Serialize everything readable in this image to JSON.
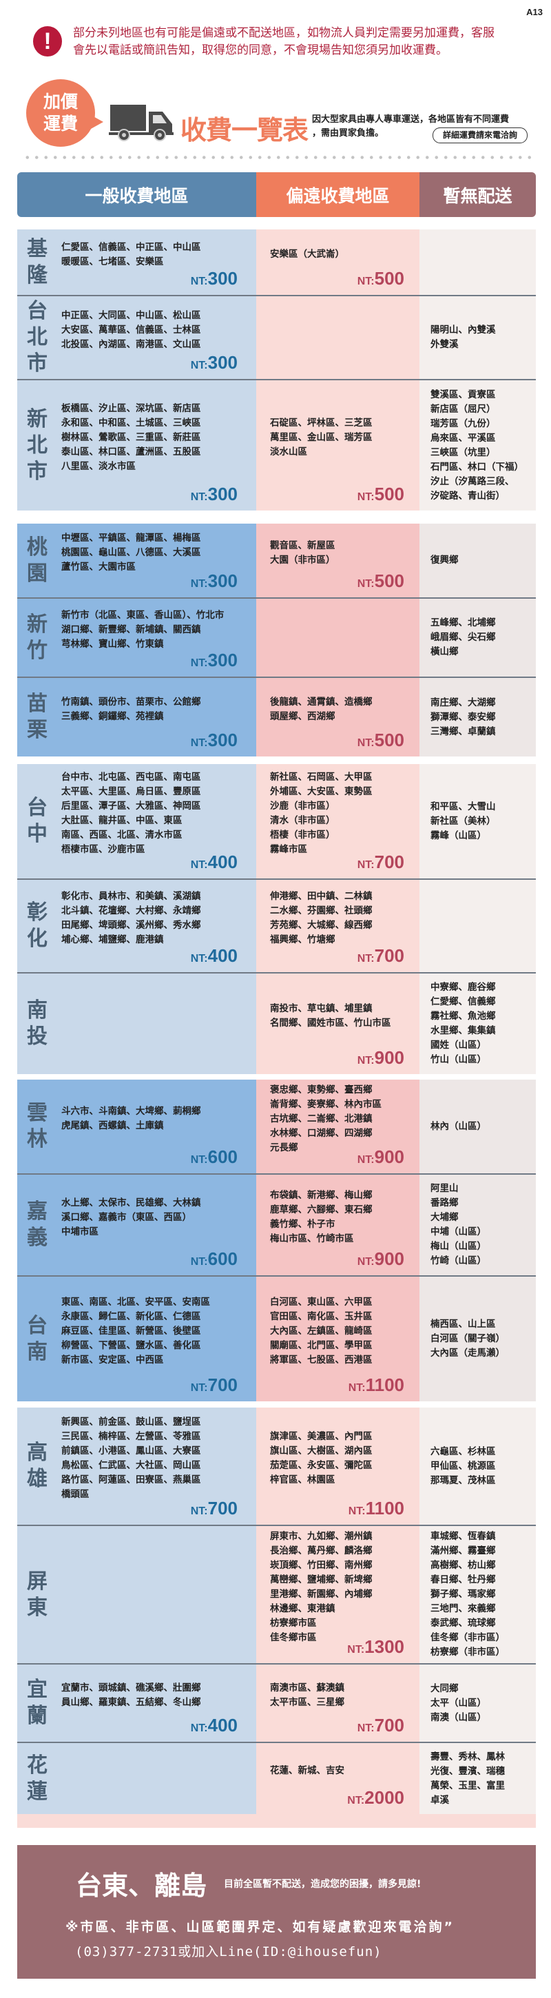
{
  "page_code": "A13",
  "warning": {
    "icon": "exclamation-icon",
    "lines": [
      "部分未列地區也有可能是偏遠或不配送地區，如物流人員判定需要另加運費，客服",
      "會先以電話或簡訊告知，取得您的同意，不會現場告知您須另加收運費。"
    ]
  },
  "banner": {
    "badge_lines": [
      "加價",
      "運費"
    ],
    "truck_icon": "truck-icon",
    "title": "收費一覽表",
    "desc_lines": [
      "因大型家具由專人專車運送，各地區皆有不同運費",
      "，需由買家負擔。"
    ],
    "detail_button": "詳細運費請來電洽詢"
  },
  "headers": {
    "general": "一般收費地區",
    "remote": "偏遠收費地區",
    "none": "暫無配送"
  },
  "colors": {
    "general": "#5b87ae",
    "remote": "#ef7d5c",
    "none": "#9b6b70",
    "warning": "#b0253f"
  },
  "currency_prefix": "NT:",
  "regions": [
    {
      "name": "基隆",
      "general": [
        "仁愛區、信義區、中正區、中山區",
        "暖暖區、七堵區、安樂區"
      ],
      "general_price": "300",
      "remote": [
        "安樂區（大武崙）"
      ],
      "remote_price": "500",
      "none": []
    },
    {
      "name": "台北市",
      "general": [
        "中正區、大同區、中山區、松山區",
        "大安區、萬華區、信義區、士林區",
        "北投區、內湖區、南港區、文山區"
      ],
      "general_price": "300",
      "remote": [],
      "remote_price": "",
      "none": [
        "陽明山、內雙溪",
        "外雙溪"
      ]
    },
    {
      "name": "新北市",
      "general": [
        "板橋區、汐止區、深坑區、新店區",
        "永和區、中和區、土城區、三峽區",
        "樹林區、鶯歌區、三重區、新莊區",
        "泰山區、林口區、蘆洲區、五股區",
        "八里區、淡水市區"
      ],
      "general_price": "300",
      "remote": [
        "石碇區、坪林區、三芝區",
        "萬里區、金山區、瑞芳區",
        "淡水山區"
      ],
      "remote_price": "500",
      "none": [
        "雙溪區、貢寮區",
        "新店區（屈尺）",
        "瑞芳區（九份）",
        "烏來區、平溪區",
        "三峽區（坑里）",
        "石門區、林口（下福）",
        "汐止（汐萬路三段、",
        "汐碇路、青山街）"
      ]
    },
    {
      "name": "桃園",
      "general": [
        "中壢區、平鎮區、龍潭區、楊梅區",
        "桃園區、龜山區、八德區、大溪區",
        "蘆竹區、大園市區"
      ],
      "general_price": "300",
      "remote": [
        "觀音區、新屋區",
        "大園（非市區）"
      ],
      "remote_price": "500",
      "none": [
        "復興鄉"
      ]
    },
    {
      "name": "新竹",
      "general": [
        "新竹市（北區、東區、香山區）、竹北市",
        "湖口鄉、新豐鄉、新埔鎮、關西鎮",
        "芎林鄉、寶山鄉、竹東鎮"
      ],
      "general_price": "300",
      "remote": [],
      "remote_price": "",
      "none": [
        "五峰鄉、北埔鄉",
        "峨眉鄉、尖石鄉",
        "橫山鄉"
      ]
    },
    {
      "name": "苗栗",
      "general": [
        "竹南鎮、頭份市、苗栗市、公館鄉",
        "三義鄉、銅鑼鄉、苑裡鎮"
      ],
      "general_price": "300",
      "remote": [
        "後龍鎮、通霄鎮、造橋鄉",
        "頭屋鄉、西湖鄉"
      ],
      "remote_price": "500",
      "none": [
        "南庄鄉、大湖鄉",
        "獅潭鄉、泰安鄉",
        "三灣鄉、卓蘭鎮"
      ]
    },
    {
      "name": "台中",
      "general": [
        "台中市、北屯區、西屯區、南屯區",
        "太平區、大里區、烏日區、豐原區",
        "后里區、潭子區、大雅區、神岡區",
        "大肚區、龍井區、中區、東區",
        "南區、西區、北區、清水市區",
        "梧棲市區、沙鹿市區"
      ],
      "general_price": "400",
      "remote": [
        "新社區、石岡區、大甲區",
        "外埔區、大安區、東勢區",
        "沙鹿（非市區）",
        "清水（非市區）",
        "梧棲（非市區）",
        "霧峰市區"
      ],
      "remote_price": "700",
      "none": [
        "和平區、大雪山",
        "新社區（美林）",
        "霧峰（山區）"
      ]
    },
    {
      "name": "彰化",
      "general": [
        "彰化市、員林市、和美鎮、溪湖鎮",
        "北斗鎮、花壇鄉、大村鄉、永靖鄉",
        "田尾鄉、埤頭鄉、溪州鄉、秀水鄉",
        "埔心鄉、埔鹽鄉、鹿港鎮"
      ],
      "general_price": "400",
      "remote": [
        "伸港鄉、田中鎮、二林鎮",
        "二水鄉、芬園鄉、社頭鄉",
        "芳苑鄉、大城鄉、線西鄉",
        "福興鄉、竹塘鄉"
      ],
      "remote_price": "700",
      "none": []
    },
    {
      "name": "南投",
      "general": [],
      "general_price": "",
      "remote": [
        "南投市、草屯鎮、埔里鎮",
        "名間鄉、國姓市區、竹山市區"
      ],
      "remote_price": "900",
      "none": [
        "中寮鄉、鹿谷鄉",
        "仁愛鄉、信義鄉",
        "霧社鄉、魚池鄉",
        "水里鄉、集集鎮",
        "國姓（山區）",
        "竹山（山區）"
      ]
    },
    {
      "name": "雲林",
      "general": [
        "斗六市、斗南鎮、大埤鄉、莿桐鄉",
        "虎尾鎮、西螺鎮、土庫鎮"
      ],
      "general_price": "600",
      "remote": [
        "褒忠鄉、東勢鄉、臺西鄉",
        "崙背鄉、麥寮鄉、林內市區",
        "古坑鄉、二崙鄉、北港鎮",
        "水林鄉、口湖鄉、四湖鄉",
        "元長鄉"
      ],
      "remote_price": "900",
      "none": [
        "林內（山區）"
      ]
    },
    {
      "name": "嘉義",
      "general": [
        "水上鄉、太保市、民雄鄉、大林鎮",
        "溪口鄉、嘉義市（東區、西區）",
        "中埔市區"
      ],
      "general_price": "600",
      "remote": [
        "布袋鎮、新港鄉、梅山鄉",
        "鹿草鄉、六腳鄉、東石鄉",
        "義竹鄉、朴子市",
        "梅山市區、竹崎市區"
      ],
      "remote_price": "900",
      "none": [
        "阿里山",
        "番路鄉",
        "大埔鄉",
        "中埔（山區）",
        "梅山（山區）",
        "竹崎（山區）"
      ]
    },
    {
      "name": "台南",
      "general": [
        "東區、南區、北區、安平區、安南區",
        "永康區、歸仁區、新化區、仁德區",
        "麻豆區、佳里區、新營區、後壁區",
        "柳營區、下營區、鹽水區、善化區",
        "新市區、安定區、中西區"
      ],
      "general_price": "700",
      "remote": [
        "白河區、東山區、六甲區",
        "官田區、南化區、玉井區",
        "大內區、左鎮區、龍崎區",
        "關廟區、北門區、學甲區",
        "將軍區、七股區、西港區"
      ],
      "remote_price": "1100",
      "none": [
        "楠西區、山上區",
        "白河區（關子嶺）",
        "大內區（走馬瀨）"
      ]
    },
    {
      "name": "高雄",
      "general": [
        "新興區、前金區、鼓山區、鹽埕區",
        "三民區、楠梓區、左營區、苓雅區",
        "前鎮區、小港區、鳳山區、大寮區",
        "鳥松區、仁武區、大社區、岡山區",
        "路竹區、阿蓮區、田寮區、燕巢區",
        "橋頭區"
      ],
      "general_price": "700",
      "remote": [
        "旗津區、美濃區、內門區",
        "旗山區、大樹區、湖內區",
        "茄萣區、永安區、彌陀區",
        "梓官區、林園區"
      ],
      "remote_price": "1100",
      "none": [
        "六龜區、杉林區",
        "甲仙區、桃源區",
        "那瑪夏、茂林區"
      ]
    },
    {
      "name": "屏東",
      "general": [],
      "general_price": "",
      "remote": [
        "屏東市、九如鄉、潮州鎮",
        "長治鄉、萬丹鄉、麟洛鄉",
        "崁頂鄉、竹田鄉、南州鄉",
        "萬巒鄉、鹽埔鄉、新埤鄉",
        "里港鄉、新園鄉、內埔鄉",
        "林邊鄉、東港鎮",
        "枋寮鄉市區",
        "佳冬鄉市區"
      ],
      "remote_price": "1300",
      "none": [
        "車城鄉、恆春鎮",
        "滿州鄉、霧臺鄉",
        "高樹鄉、枋山鄉",
        "春日鄉、牡丹鄉",
        "獅子鄉、瑪家鄉",
        "三地門、來義鄉",
        "泰武鄉、琉球鄉",
        "佳冬鄉（非市區）",
        "枋寮鄉（非市區）"
      ]
    },
    {
      "name": "宜蘭",
      "general": [
        "宜蘭市、頭城鎮、礁溪鄉、壯圍鄉",
        "員山鄉、羅東鎮、五結鄉、冬山鄉"
      ],
      "general_price": "400",
      "remote": [
        "南澳市區、蘇澳鎮",
        "太平市區、三星鄉"
      ],
      "remote_price": "700",
      "none": [
        "大同鄉",
        "太平（山區）",
        "南澳（山區）"
      ]
    },
    {
      "name": "花蓮",
      "general": [],
      "general_price": "",
      "remote": [
        "花蓮、新城、吉安"
      ],
      "remote_price": "2000",
      "none": [
        "壽豐、秀林、鳳林",
        "光復、豐濱、瑞穗",
        "萬榮、玉里、富里",
        "卓溪"
      ]
    }
  ],
  "footer": {
    "title": "台東、離島",
    "subtitle": "目前全區暫不配送，造成您的困擾，請多見諒!",
    "note": "※市區、非市區、山區範圍界定、如有疑慮歡迎來電洽詢”",
    "contact": "(03)377-2731或加入Line(ID:@ihousefun)"
  }
}
